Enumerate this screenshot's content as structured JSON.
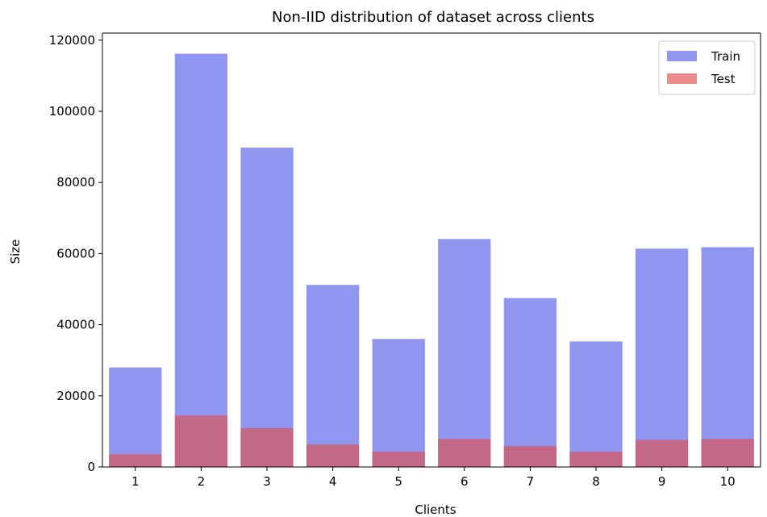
{
  "chart_data": {
    "type": "bar",
    "title": "Non-IID distribution of dataset across clients",
    "xlabel": "Clients",
    "ylabel": "Size",
    "categories": [
      "1",
      "2",
      "3",
      "4",
      "5",
      "6",
      "7",
      "8",
      "9",
      "10"
    ],
    "ylim": [
      0,
      122000
    ],
    "yticks": [
      0,
      20000,
      40000,
      60000,
      80000,
      100000,
      120000
    ],
    "grid": false,
    "legend_position": "top-right",
    "overlay": true,
    "series": [
      {
        "name": "Train",
        "color": "#6b73ea",
        "values": [
          28000,
          116200,
          89800,
          51200,
          36000,
          64100,
          47500,
          35300,
          61400,
          61800
        ]
      },
      {
        "name": "Test",
        "color": "#e15050",
        "values": [
          3600,
          14500,
          10900,
          6300,
          4300,
          7900,
          5900,
          4300,
          7600,
          7900
        ]
      }
    ]
  }
}
